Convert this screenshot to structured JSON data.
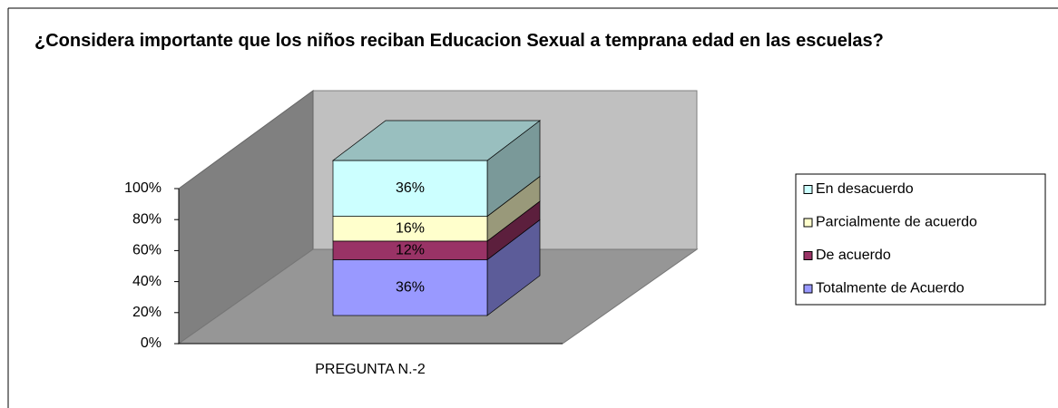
{
  "chart_data": {
    "type": "bar3d_stacked",
    "title": "¿Considera importante que los niños reciban Educacion Sexual a temprana edad en las escuelas?",
    "categories": [
      "PREGUNTA N.-2"
    ],
    "series": [
      {
        "name": "Totalmente de Acuerdo",
        "color": "#9999ff",
        "values": [
          36
        ],
        "value_labels": [
          "36%"
        ]
      },
      {
        "name": "De acuerdo",
        "color": "#993366",
        "values": [
          12
        ],
        "value_labels": [
          "12%"
        ]
      },
      {
        "name": "Parcialmente de acuerdo",
        "color": "#ffffcc",
        "values": [
          16
        ],
        "value_labels": [
          "16%"
        ]
      },
      {
        "name": "En desacuerdo",
        "color": "#ccffff",
        "values": [
          36
        ],
        "value_labels": [
          "36%"
        ]
      }
    ],
    "ylim": [
      0,
      100
    ],
    "yticks": [
      {
        "value": 0,
        "label": "0%"
      },
      {
        "value": 20,
        "label": "20%"
      },
      {
        "value": 40,
        "label": "40%"
      },
      {
        "value": 60,
        "label": "60%"
      },
      {
        "value": 80,
        "label": "80%"
      },
      {
        "value": 100,
        "label": "100%"
      }
    ],
    "legend": "right"
  }
}
